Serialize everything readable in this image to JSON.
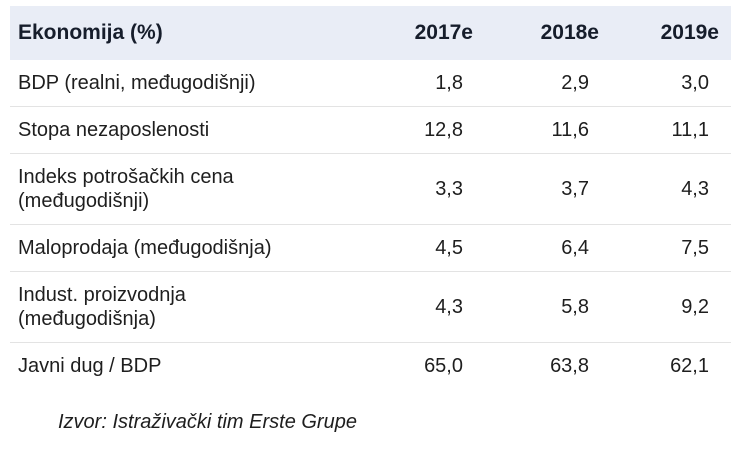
{
  "table": {
    "header": {
      "label": "Ekonomija (%)",
      "columns": [
        "2017e",
        "2018e",
        "2019e"
      ]
    },
    "rows": [
      {
        "label": "BDP (realni, međugodišnji)",
        "values": [
          "1,8",
          "2,9",
          "3,0"
        ]
      },
      {
        "label": "Stopa nezaposlenosti",
        "values": [
          "12,8",
          "11,6",
          "11,1"
        ]
      },
      {
        "label": "Indeks potrošačkih cena\n(međugodišnji)",
        "values": [
          "3,3",
          "3,7",
          "4,3"
        ]
      },
      {
        "label": "Maloprodaja (međugodišnja)",
        "values": [
          "4,5",
          "6,4",
          "7,5"
        ]
      },
      {
        "label": "Indust. proizvodnja\n(međugodišnja)",
        "values": [
          "4,3",
          "5,8",
          "9,2"
        ]
      },
      {
        "label": "Javni dug / BDP",
        "values": [
          "65,0",
          "63,8",
          "62,1"
        ]
      }
    ],
    "source": "Izvor: Istraživački tim Erste Grupe"
  },
  "colors": {
    "header_bg": "#e9edf6",
    "header_text": "#161d2b",
    "body_text": "#1e1e1e",
    "row_separator": "#e3e3e3"
  },
  "chart_data": {
    "type": "table",
    "title": "Ekonomija (%)",
    "categories": [
      "2017e",
      "2018e",
      "2019e"
    ],
    "series": [
      {
        "name": "BDP (realni, međugodišnji)",
        "values": [
          1.8,
          2.9,
          3.0
        ]
      },
      {
        "name": "Stopa nezaposlenosti",
        "values": [
          12.8,
          11.6,
          11.1
        ]
      },
      {
        "name": "Indeks potrošačkih cena (međugodišnji)",
        "values": [
          3.3,
          3.7,
          4.3
        ]
      },
      {
        "name": "Maloprodaja (međugodišnja)",
        "values": [
          4.5,
          6.4,
          7.5
        ]
      },
      {
        "name": "Indust. proizvodnja (međugodišnja)",
        "values": [
          4.3,
          5.8,
          9.2
        ]
      },
      {
        "name": "Javni dug / BDP",
        "values": [
          65.0,
          63.8,
          62.1
        ]
      }
    ],
    "annotations": [
      "Izvor: Istraživački tim Erste Grupe"
    ],
    "layout": {
      "grid": "faint horizontal separators",
      "header_band": true
    }
  }
}
